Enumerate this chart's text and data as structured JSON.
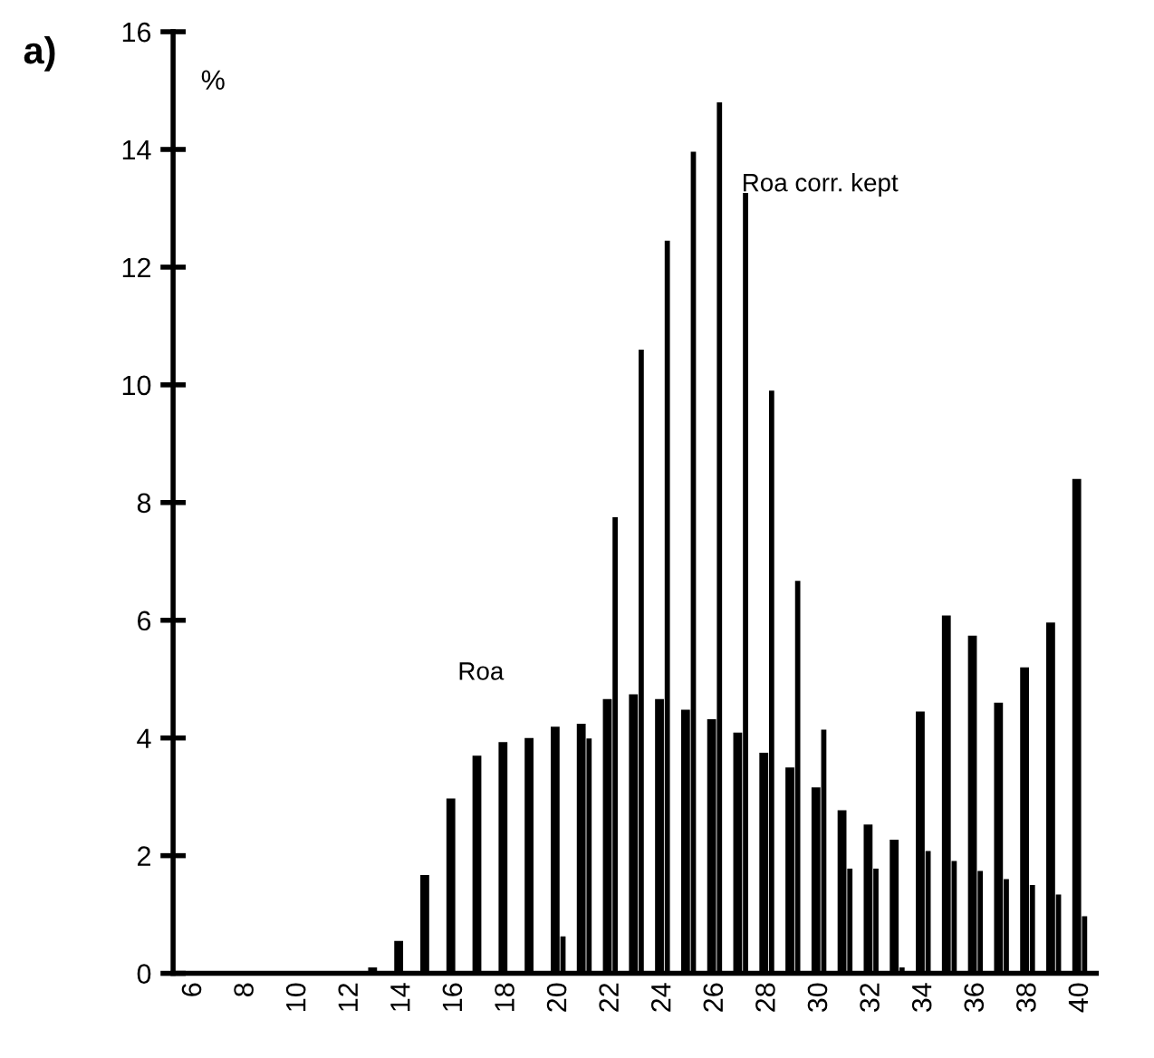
{
  "chart_data": {
    "type": "bar",
    "ylabel": "%",
    "annotations": [
      "a)"
    ],
    "categories": [
      "6",
      null,
      "8",
      null,
      "10",
      null,
      "12",
      null,
      "14",
      null,
      "16",
      null,
      "18",
      null,
      "20",
      null,
      "22",
      null,
      "24",
      null,
      "26",
      null,
      "28",
      null,
      "30",
      null,
      "32",
      null,
      "34",
      null,
      "36",
      null,
      "38",
      null,
      "40"
    ],
    "series": [
      {
        "name": "Roa",
        "color": "#000000",
        "values": [
          0,
          0,
          0,
          0,
          0,
          0,
          0,
          0.1,
          0.55,
          1.67,
          2.97,
          3.7,
          3.93,
          4.0,
          4.19,
          4.24,
          4.66,
          4.74,
          4.66,
          4.48,
          4.32,
          4.09,
          3.75,
          3.5,
          3.16,
          2.77,
          2.53,
          2.27,
          4.45,
          6.08,
          5.74,
          4.6,
          5.2,
          5.96,
          8.4
        ]
      },
      {
        "name": "Roa corr. kept",
        "color": "#000000",
        "values": [
          0,
          0,
          0,
          0,
          0,
          0,
          0,
          0,
          0,
          0,
          0,
          0,
          0,
          0,
          0.63,
          3.99,
          7.75,
          10.6,
          12.45,
          13.96,
          14.8,
          13.26,
          9.9,
          6.67,
          4.14,
          1.78,
          1.78,
          0.1,
          2.08,
          1.91,
          1.74,
          1.6,
          1.5,
          1.34,
          0.97
        ]
      }
    ],
    "ylim": [
      0,
      16
    ],
    "yticks": [
      0,
      2,
      4,
      6,
      8,
      10,
      12,
      14,
      16
    ],
    "grid": false,
    "legend": false
  }
}
